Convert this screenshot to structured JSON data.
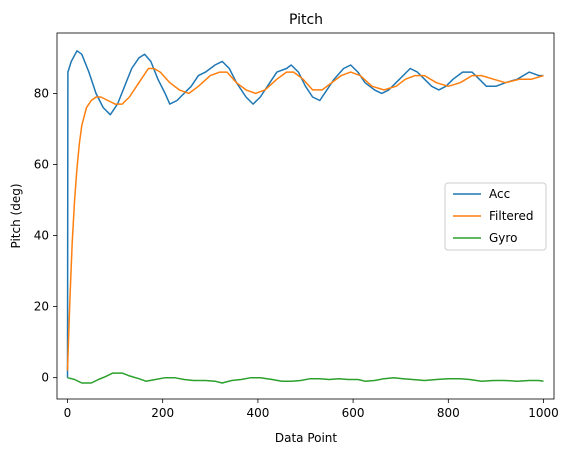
{
  "chart_data": {
    "type": "line",
    "title": "Pitch",
    "xlabel": "Data Point",
    "ylabel": "Pitch (deg)",
    "xlim": [
      -22,
      1022
    ],
    "ylim": [
      -6,
      97
    ],
    "xticks": [
      0,
      200,
      400,
      600,
      800,
      1000
    ],
    "yticks": [
      0,
      20,
      40,
      60,
      80
    ],
    "grid": false,
    "legend_position": "center-right",
    "series": [
      {
        "name": "Acc",
        "color": "#1f77b4",
        "points": [
          [
            0,
            0
          ],
          [
            1,
            86
          ],
          [
            8,
            89
          ],
          [
            20,
            92
          ],
          [
            30,
            91
          ],
          [
            45,
            86
          ],
          [
            60,
            80
          ],
          [
            75,
            76
          ],
          [
            90,
            74
          ],
          [
            105,
            77
          ],
          [
            120,
            82
          ],
          [
            135,
            87
          ],
          [
            150,
            90
          ],
          [
            162,
            91
          ],
          [
            175,
            89
          ],
          [
            190,
            84
          ],
          [
            205,
            80
          ],
          [
            215,
            77
          ],
          [
            230,
            78
          ],
          [
            245,
            80
          ],
          [
            260,
            82
          ],
          [
            275,
            85
          ],
          [
            290,
            86
          ],
          [
            310,
            88
          ],
          [
            325,
            89
          ],
          [
            340,
            87
          ],
          [
            355,
            83
          ],
          [
            375,
            79
          ],
          [
            390,
            77
          ],
          [
            405,
            79
          ],
          [
            420,
            82
          ],
          [
            440,
            86
          ],
          [
            460,
            87
          ],
          [
            470,
            88
          ],
          [
            485,
            86
          ],
          [
            500,
            82
          ],
          [
            515,
            79
          ],
          [
            530,
            78
          ],
          [
            545,
            81
          ],
          [
            560,
            84
          ],
          [
            580,
            87
          ],
          [
            595,
            88
          ],
          [
            610,
            86
          ],
          [
            625,
            83
          ],
          [
            645,
            81
          ],
          [
            660,
            80
          ],
          [
            675,
            81
          ],
          [
            690,
            83
          ],
          [
            705,
            85
          ],
          [
            720,
            87
          ],
          [
            735,
            86
          ],
          [
            750,
            84
          ],
          [
            765,
            82
          ],
          [
            780,
            81
          ],
          [
            795,
            82
          ],
          [
            810,
            84
          ],
          [
            830,
            86
          ],
          [
            850,
            86
          ],
          [
            865,
            84
          ],
          [
            880,
            82
          ],
          [
            900,
            82
          ],
          [
            920,
            83
          ],
          [
            945,
            84
          ],
          [
            970,
            86
          ],
          [
            990,
            85
          ],
          [
            1000,
            85
          ]
        ]
      },
      {
        "name": "Filtered",
        "color": "#ff7f0e",
        "points": [
          [
            0,
            2
          ],
          [
            5,
            22
          ],
          [
            10,
            38
          ],
          [
            15,
            50
          ],
          [
            20,
            59
          ],
          [
            25,
            66
          ],
          [
            30,
            71
          ],
          [
            40,
            76
          ],
          [
            50,
            78
          ],
          [
            60,
            79
          ],
          [
            70,
            79
          ],
          [
            85,
            78
          ],
          [
            100,
            77
          ],
          [
            115,
            77
          ],
          [
            130,
            79
          ],
          [
            150,
            83
          ],
          [
            170,
            87
          ],
          [
            182,
            87
          ],
          [
            195,
            86
          ],
          [
            215,
            83
          ],
          [
            235,
            81
          ],
          [
            255,
            80
          ],
          [
            275,
            82
          ],
          [
            300,
            85
          ],
          [
            320,
            86
          ],
          [
            335,
            86
          ],
          [
            355,
            83
          ],
          [
            375,
            81
          ],
          [
            395,
            80
          ],
          [
            415,
            81
          ],
          [
            440,
            84
          ],
          [
            460,
            86
          ],
          [
            475,
            86
          ],
          [
            495,
            84
          ],
          [
            515,
            81
          ],
          [
            535,
            81
          ],
          [
            555,
            83
          ],
          [
            575,
            85
          ],
          [
            595,
            86
          ],
          [
            615,
            85
          ],
          [
            640,
            82
          ],
          [
            665,
            81
          ],
          [
            690,
            82
          ],
          [
            710,
            84
          ],
          [
            730,
            85
          ],
          [
            750,
            85
          ],
          [
            775,
            83
          ],
          [
            800,
            82
          ],
          [
            825,
            83
          ],
          [
            850,
            85
          ],
          [
            870,
            85
          ],
          [
            895,
            84
          ],
          [
            920,
            83
          ],
          [
            950,
            84
          ],
          [
            975,
            84
          ],
          [
            1000,
            85
          ]
        ]
      },
      {
        "name": "Gyro",
        "color": "#2ca02c",
        "points": [
          [
            0,
            0
          ],
          [
            15,
            -0.5
          ],
          [
            30,
            -1.5
          ],
          [
            50,
            -1.5
          ],
          [
            65,
            -0.5
          ],
          [
            80,
            0.3
          ],
          [
            95,
            1.3
          ],
          [
            115,
            1.3
          ],
          [
            130,
            0.5
          ],
          [
            150,
            -0.3
          ],
          [
            165,
            -1
          ],
          [
            185,
            -0.5
          ],
          [
            205,
            0
          ],
          [
            225,
            0
          ],
          [
            245,
            -0.5
          ],
          [
            265,
            -0.8
          ],
          [
            290,
            -0.8
          ],
          [
            310,
            -1
          ],
          [
            325,
            -1.5
          ],
          [
            345,
            -0.8
          ],
          [
            365,
            -0.5
          ],
          [
            385,
            0
          ],
          [
            405,
            0
          ],
          [
            430,
            -0.5
          ],
          [
            450,
            -1
          ],
          [
            470,
            -1
          ],
          [
            490,
            -0.8
          ],
          [
            510,
            -0.3
          ],
          [
            530,
            -0.3
          ],
          [
            550,
            -0.5
          ],
          [
            570,
            -0.3
          ],
          [
            590,
            -0.5
          ],
          [
            610,
            -0.5
          ],
          [
            625,
            -1
          ],
          [
            645,
            -0.8
          ],
          [
            665,
            -0.3
          ],
          [
            685,
            0
          ],
          [
            705,
            -0.3
          ],
          [
            725,
            -0.5
          ],
          [
            750,
            -0.8
          ],
          [
            775,
            -0.5
          ],
          [
            800,
            -0.3
          ],
          [
            825,
            -0.3
          ],
          [
            845,
            -0.5
          ],
          [
            870,
            -1
          ],
          [
            895,
            -0.8
          ],
          [
            920,
            -0.8
          ],
          [
            945,
            -1
          ],
          [
            970,
            -0.8
          ],
          [
            990,
            -0.8
          ],
          [
            1000,
            -1
          ]
        ]
      }
    ]
  }
}
